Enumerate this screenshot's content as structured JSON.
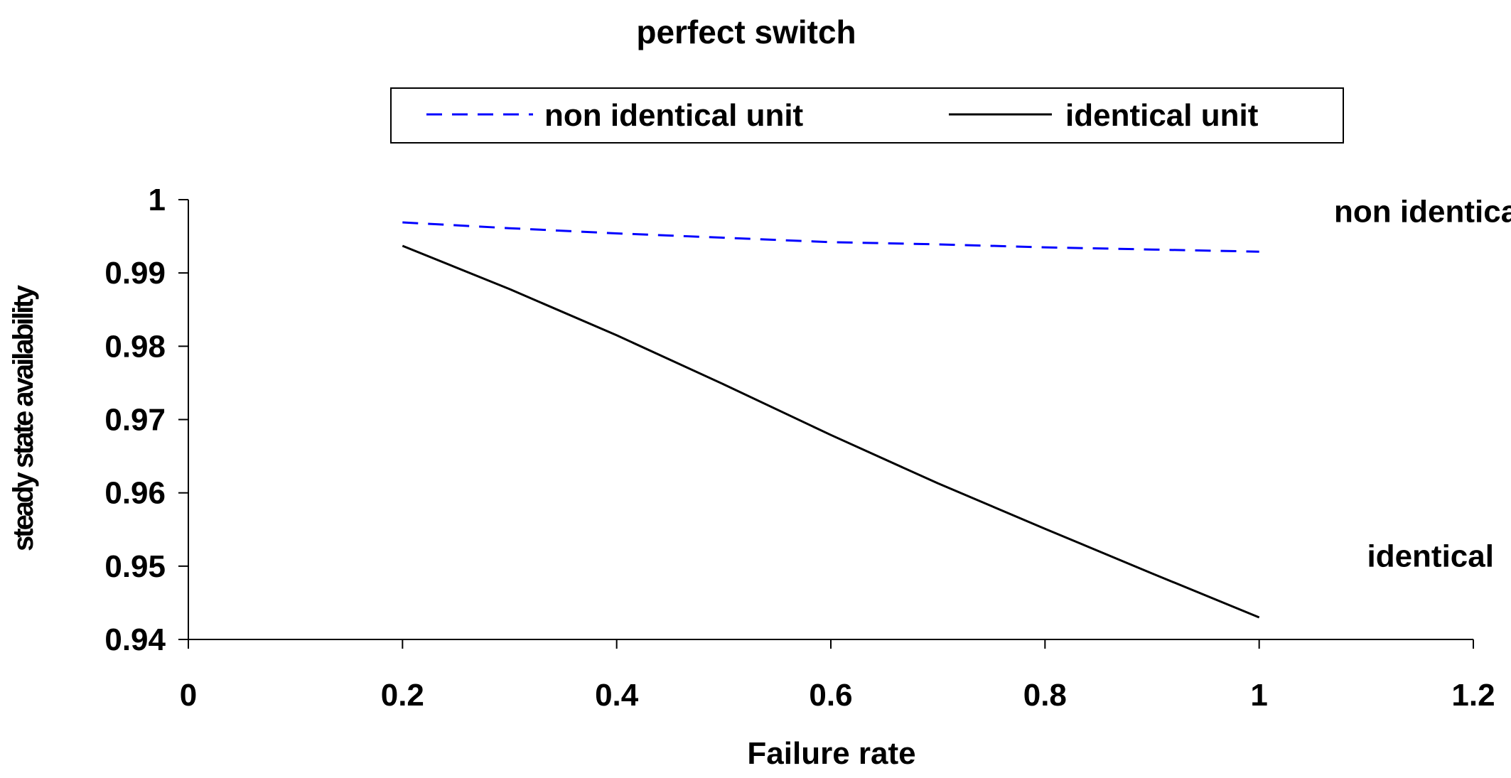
{
  "chart_data": {
    "type": "line",
    "title": "perfect switch",
    "xlabel": "Failure rate",
    "ylabel": "steady state availability",
    "xlim": [
      0,
      1.2
    ],
    "ylim": [
      0.94,
      1
    ],
    "xticks": [
      "0",
      "0.2",
      "0.4",
      "0.6",
      "0.8",
      "1",
      "1.2"
    ],
    "yticks": [
      "0.94",
      "0.95",
      "0.96",
      "0.97",
      "0.98",
      "0.99",
      "1"
    ],
    "grid": false,
    "legend": "top",
    "series": [
      {
        "name": "non identical unit",
        "color": "#0000ff",
        "style": "dashed",
        "x": [
          0.2,
          0.3,
          0.4,
          0.5,
          0.6,
          0.7,
          0.8,
          0.9,
          1.0
        ],
        "y": [
          0.9969,
          0.9961,
          0.9954,
          0.9948,
          0.9942,
          0.9939,
          0.9935,
          0.9932,
          0.9929
        ]
      },
      {
        "name": "identical unit",
        "color": "#000000",
        "style": "solid",
        "x": [
          0.2,
          0.3,
          0.4,
          0.5,
          0.6,
          0.7,
          0.8,
          0.9,
          1.0
        ],
        "y": [
          0.9937,
          0.9878,
          0.9815,
          0.9748,
          0.9679,
          0.9613,
          0.9551,
          0.949,
          0.943
        ]
      }
    ],
    "annotations": [
      {
        "text": "non identical",
        "x": 1.16,
        "y": 0.9983
      },
      {
        "text": "identical",
        "x": 1.16,
        "y": 0.9513
      }
    ]
  }
}
